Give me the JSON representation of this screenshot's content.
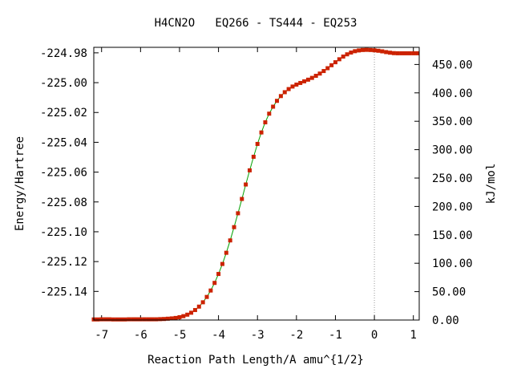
{
  "chart_data": {
    "type": "line",
    "title": "H4CN2O   EQ266 - TS444 - EQ253",
    "xlabel": "Reaction Path Length/A amu^{1/2}",
    "ylabel": "Energy/Hartree",
    "y2label": "kJ/mol",
    "xlim": [
      -7.2,
      1.15
    ],
    "ylim": [
      -225.1592,
      -224.9763
    ],
    "x_ticks": [
      -7,
      -6,
      -5,
      -4,
      -3,
      -2,
      -1,
      0,
      1
    ],
    "x_tick_labels": [
      "-7",
      "-6",
      "-5",
      "-4",
      "-3",
      "-2",
      "-1",
      "0",
      "1"
    ],
    "y_ticks": [
      -224.98,
      -225.0,
      -225.02,
      -225.04,
      -225.06,
      -225.08,
      -225.1,
      -225.12,
      -225.14
    ],
    "y_tick_labels": [
      "-224.98",
      "-225.00",
      "-225.02",
      "-225.04",
      "-225.06",
      "-225.08",
      "-225.10",
      "-225.12",
      "-225.14"
    ],
    "y2_ticks": [
      0,
      50,
      100,
      150,
      200,
      250,
      300,
      350,
      400,
      450
    ],
    "y2_tick_labels": [
      "0.00",
      "50.00",
      "100.00",
      "150.00",
      "200.00",
      "250.00",
      "300.00",
      "350.00",
      "400.00",
      "450.00"
    ],
    "y2_reference_hartree": -225.1592,
    "hartree_to_kjmol": 2625.5,
    "transition_state_x": 0.0,
    "grid": false,
    "colors": {
      "line": "#00a000",
      "marker": "#cc2200",
      "vline": "#999999",
      "axis": "#000000"
    },
    "x": [
      -7.2,
      -7.1,
      -7.0,
      -6.9,
      -6.8,
      -6.7,
      -6.6,
      -6.5,
      -6.4,
      -6.3,
      -6.2,
      -6.1,
      -6.0,
      -5.9,
      -5.8,
      -5.7,
      -5.6,
      -5.5,
      -5.4,
      -5.3,
      -5.2,
      -5.1,
      -5.0,
      -4.9,
      -4.8,
      -4.7,
      -4.6,
      -4.5,
      -4.4,
      -4.3,
      -4.2,
      -4.1,
      -4.0,
      -3.9,
      -3.8,
      -3.7,
      -3.6,
      -3.5,
      -3.4,
      -3.3,
      -3.2,
      -3.1,
      -3.0,
      -2.9,
      -2.8,
      -2.7,
      -2.6,
      -2.5,
      -2.4,
      -2.3,
      -2.2,
      -2.1,
      -2.0,
      -1.9,
      -1.8,
      -1.7,
      -1.6,
      -1.5,
      -1.4,
      -1.3,
      -1.2,
      -1.1,
      -1.0,
      -0.9,
      -0.8,
      -0.7,
      -0.6,
      -0.5,
      -0.4,
      -0.3,
      -0.2,
      -0.1,
      0.0,
      0.1,
      0.2,
      0.3,
      0.4,
      0.5,
      0.6,
      0.7,
      0.8,
      0.9,
      1.0,
      1.1
    ],
    "y": [
      -225.1588,
      -225.1588,
      -225.1587,
      -225.1587,
      -225.1587,
      -225.1588,
      -225.1588,
      -225.1588,
      -225.1588,
      -225.1587,
      -225.1587,
      -225.1587,
      -225.1587,
      -225.1587,
      -225.1587,
      -225.1587,
      -225.1587,
      -225.1586,
      -225.1585,
      -225.1583,
      -225.1581,
      -225.1578,
      -225.1573,
      -225.1566,
      -225.1556,
      -225.1543,
      -225.1525,
      -225.1502,
      -225.1473,
      -225.1437,
      -225.1394,
      -225.1343,
      -225.1283,
      -225.1216,
      -225.1141,
      -225.1058,
      -225.0969,
      -225.0876,
      -225.078,
      -225.0683,
      -225.0588,
      -225.0497,
      -225.0411,
      -225.0334,
      -225.0266,
      -225.0208,
      -225.0161,
      -225.0122,
      -225.009,
      -225.0064,
      -225.0043,
      -225.0026,
      -225.0013,
      -225.0002,
      -224.9991,
      -224.998,
      -224.9968,
      -224.9954,
      -224.9939,
      -224.9922,
      -224.9903,
      -224.9883,
      -224.9863,
      -224.9843,
      -224.9825,
      -224.981,
      -224.9798,
      -224.9789,
      -224.9784,
      -224.9781,
      -224.978,
      -224.9781,
      -224.9783,
      -224.9786,
      -224.979,
      -224.9795,
      -224.9799,
      -224.9802,
      -224.9803,
      -224.9803,
      -224.9803,
      -224.9803,
      -224.9803,
      -224.9803
    ]
  }
}
